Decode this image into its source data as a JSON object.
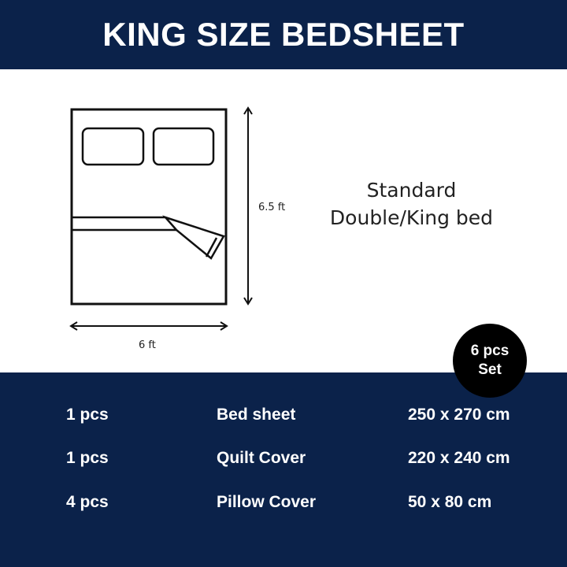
{
  "header": {
    "title": "KING SIZE BEDSHEET"
  },
  "diagram": {
    "height_label": "6.5 ft",
    "width_label": "6 ft",
    "bed_type_line1": "Standard",
    "bed_type_line2": "Double/King bed"
  },
  "badge": {
    "line1": "6 pcs",
    "line2": "Set"
  },
  "items": [
    {
      "qty": "1 pcs",
      "name": "Bed sheet",
      "size": "250 x 270 cm"
    },
    {
      "qty": "1 pcs",
      "name": "Quilt Cover",
      "size": "220 x 240 cm"
    },
    {
      "qty": "4 pcs",
      "name": "Pillow Cover",
      "size": "50 x 80 cm"
    }
  ],
  "colors": {
    "navy": "#0b224a",
    "badge": "#000000"
  }
}
